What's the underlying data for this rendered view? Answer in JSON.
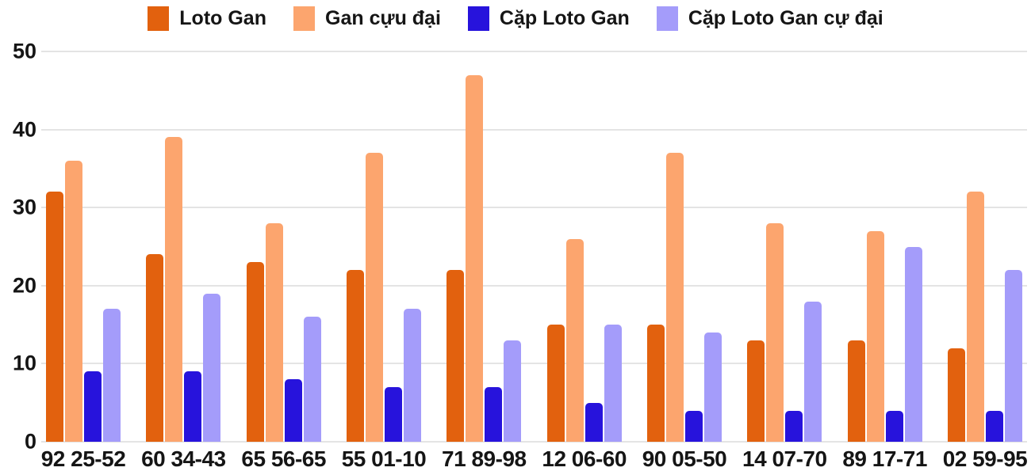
{
  "colors": {
    "loto_gan": "#E2610E",
    "gan_cuu_dai": "#FCA56E",
    "cap_loto_gan": "#2713DC",
    "cap_loto_gan_cu_dai": "#A49CFA",
    "gridline": "#E4E4E4",
    "text": "#151515",
    "background": "#FFFFFF"
  },
  "chart_data": {
    "type": "bar",
    "title": "",
    "xlabel": "",
    "ylabel": "",
    "categories": [
      "92 25-52",
      "60 34-43",
      "65 56-65",
      "55 01-10",
      "71 89-98",
      "12 06-60",
      "90 05-50",
      "14 07-70",
      "89 17-71",
      "02 59-95"
    ],
    "series": [
      {
        "name": "Loto Gan",
        "color": "#E2610E",
        "values": [
          32,
          24,
          23,
          22,
          22,
          15,
          15,
          13,
          13,
          12
        ]
      },
      {
        "name": "Gan cựu đại",
        "color": "#FCA56E",
        "values": [
          36,
          39,
          28,
          37,
          47,
          26,
          37,
          28,
          27,
          32
        ]
      },
      {
        "name": "Cặp Loto Gan",
        "color": "#2713DC",
        "values": [
          9,
          9,
          8,
          7,
          7,
          5,
          4,
          4,
          4,
          4
        ]
      },
      {
        "name": "Cặp Loto Gan cự đại",
        "color": "#A49CFA",
        "values": [
          17,
          19,
          16,
          17,
          13,
          15,
          14,
          18,
          25,
          22
        ]
      }
    ],
    "ylim": [
      0,
      50
    ],
    "yticks": [
      0,
      10,
      20,
      30,
      40,
      50
    ],
    "grid": true,
    "legend_position": "top"
  }
}
